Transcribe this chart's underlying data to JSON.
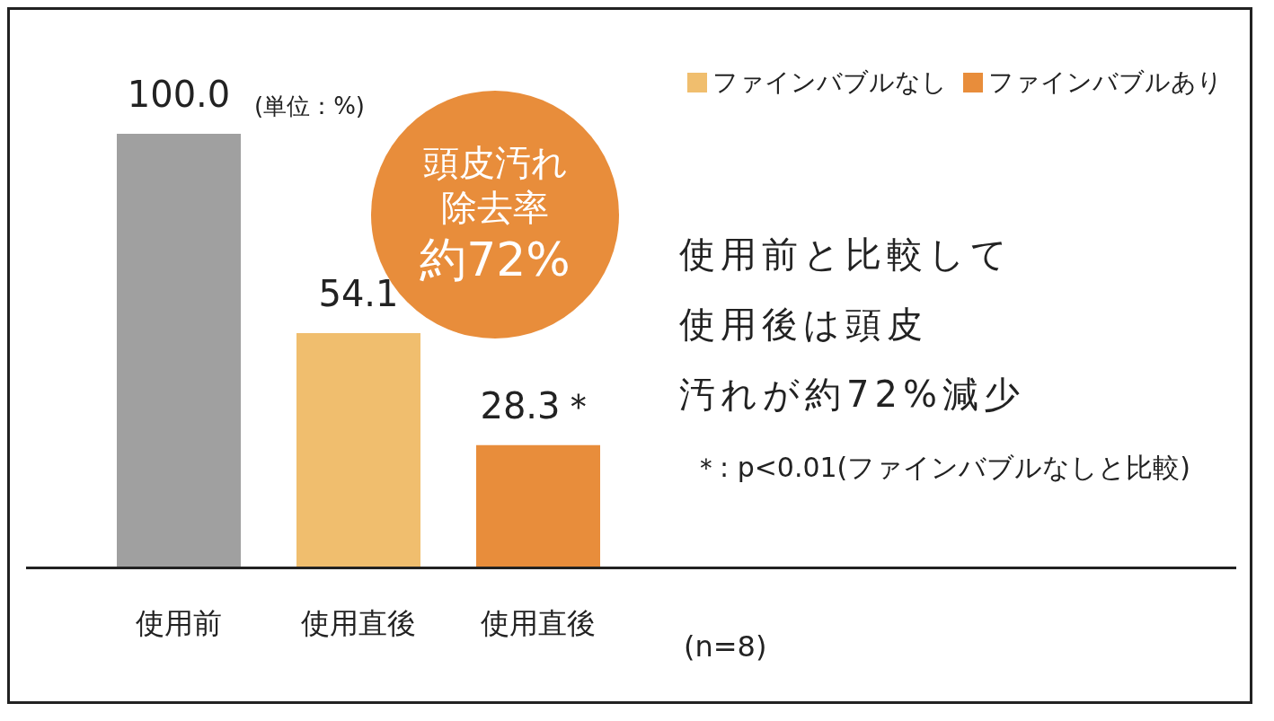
{
  "chart_data": {
    "type": "bar",
    "categories": [
      "使用前",
      "使用直後",
      "使用直後"
    ],
    "series": [
      {
        "color": "#a0a0a0",
        "values": [
          100.0,
          null,
          null
        ],
        "value_labels": [
          "100.0",
          null,
          null
        ]
      },
      {
        "name": "ファインバブルなし",
        "color": "#f0be6e",
        "values": [
          null,
          54.1,
          null
        ],
        "value_labels": [
          null,
          "54.1",
          null
        ]
      },
      {
        "name": "ファインバブルあり",
        "color": "#e88d3b",
        "values": [
          null,
          null,
          28.3
        ],
        "value_labels": [
          null,
          null,
          "28.3＊"
        ]
      }
    ],
    "ylim": [
      0,
      100
    ],
    "tick_labels": "x",
    "grid": false,
    "legend": "top right",
    "annotations": [
      "(単位：%)",
      "頭皮汚れ除去率",
      "約72%",
      "使用前と比較して",
      "使用後は頭皮",
      "汚れが約72%減少",
      "＊: p<0.01(ファインバブルなしと比較)",
      "(n=8)"
    ]
  }
}
